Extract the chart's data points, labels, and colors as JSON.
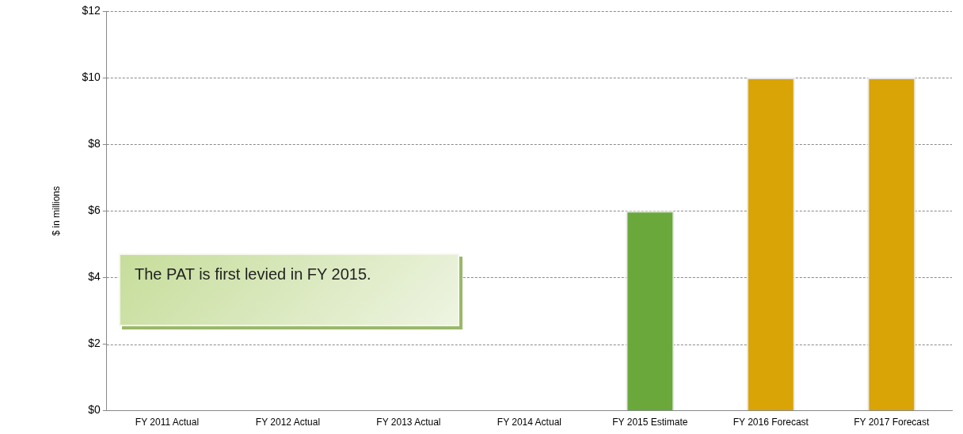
{
  "chart_data": {
    "type": "bar",
    "ylabel": "$ in millions",
    "categories": [
      "FY 2011 Actual",
      "FY 2012 Actual",
      "FY 2013 Actual",
      "FY 2014 Actual",
      "FY 2015 Estimate",
      "FY 2016 Forecast",
      "FY 2017 Forecast"
    ],
    "values": [
      null,
      null,
      null,
      null,
      6,
      10,
      10
    ],
    "colors": [
      "#d9a406",
      "#d9a406",
      "#d9a406",
      "#d9a406",
      "#6aa83c",
      "#d9a406",
      "#d9a406"
    ],
    "ylim": [
      0,
      12
    ],
    "yticks": [
      {
        "value": 0,
        "label": "$0"
      },
      {
        "value": 2,
        "label": "$2"
      },
      {
        "value": 4,
        "label": "$4"
      },
      {
        "value": 6,
        "label": "$6"
      },
      {
        "value": 8,
        "label": "$8"
      },
      {
        "value": 10,
        "label": "$10"
      },
      {
        "value": 12,
        "label": "$12"
      }
    ],
    "grid": "y",
    "legend": false,
    "annotations": [
      "The PAT is first levied in FY 2015."
    ]
  }
}
